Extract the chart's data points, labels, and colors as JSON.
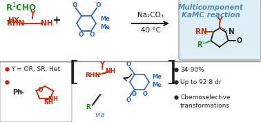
{
  "title_line1": "Multicomponent",
  "title_line2": "KaMC reaction",
  "title_color": "#4C8CB5",
  "condition1": "Na₂CO₃",
  "condition2": "40 °C",
  "red": "#cc2200",
  "green": "#228B22",
  "blue": "#3366cc",
  "dark": "#222222",
  "gray": "#888888",
  "teal": "#4C8CB5",
  "bg": "#ffffff",
  "prod_box_bg": "#ddeef6",
  "left_box_border": "#aaaaaa",
  "bullet1": "Y = OR, SR, Het",
  "yield_lines": [
    "34-90%",
    "Up to 92:8 dr",
    "Chemoselective",
    "transformations"
  ]
}
